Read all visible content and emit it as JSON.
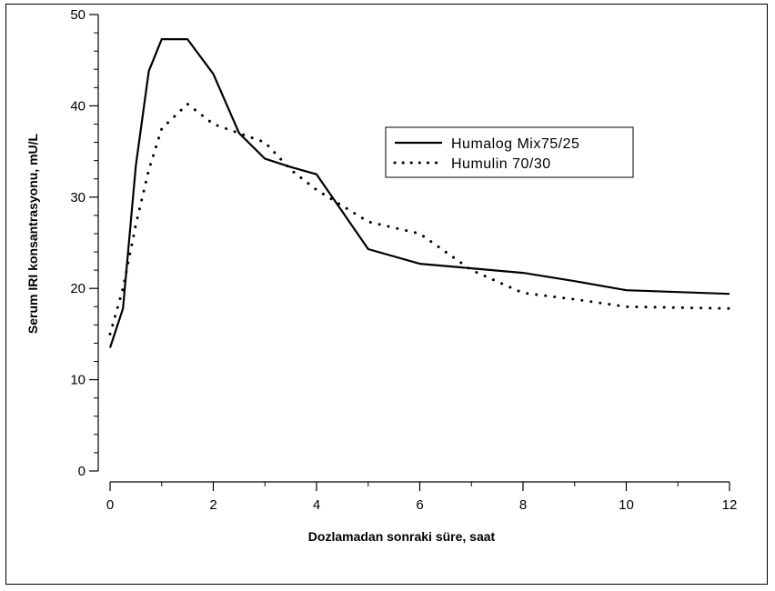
{
  "chart_data": {
    "type": "line",
    "title": "",
    "xlabel": "Dozlamadan sonraki süre, saat",
    "ylabel": "Serum IRI konsantrasyonu, mU/L",
    "xlim": [
      0,
      12
    ],
    "ylim": [
      0,
      50
    ],
    "x_ticks": [
      0,
      2,
      4,
      6,
      8,
      10,
      12
    ],
    "y_ticks": [
      0,
      10,
      20,
      30,
      40,
      50
    ],
    "grid": false,
    "legend_position": "right",
    "series": [
      {
        "name": "Humalog Mix75/25",
        "style": "solid",
        "color": "#000000",
        "x": [
          0,
          0.25,
          0.5,
          0.75,
          1.0,
          1.5,
          2.0,
          2.5,
          3.0,
          3.5,
          4.0,
          5.0,
          6.0,
          7.0,
          8.0,
          9.0,
          10.0,
          11.0,
          12.0
        ],
        "y": [
          13.5,
          17.8,
          33.5,
          43.8,
          47.3,
          47.3,
          43.5,
          37.0,
          34.2,
          33.3,
          32.5,
          24.3,
          22.7,
          22.2,
          21.7,
          20.8,
          19.8,
          19.6,
          19.4
        ]
      },
      {
        "name": "Humulin 70/30",
        "style": "dotted",
        "color": "#000000",
        "x": [
          0,
          0.25,
          0.5,
          0.75,
          1.0,
          1.5,
          2.0,
          2.5,
          3.0,
          3.5,
          4.0,
          5.0,
          6.0,
          7.0,
          8.0,
          9.0,
          10.0,
          11.0,
          12.0
        ],
        "y": [
          15.0,
          20.0,
          27.0,
          33.0,
          37.5,
          40.2,
          38.0,
          37.0,
          36.0,
          33.0,
          30.8,
          27.3,
          26.0,
          22.0,
          19.5,
          18.8,
          18.0,
          17.9,
          17.8
        ]
      }
    ]
  }
}
